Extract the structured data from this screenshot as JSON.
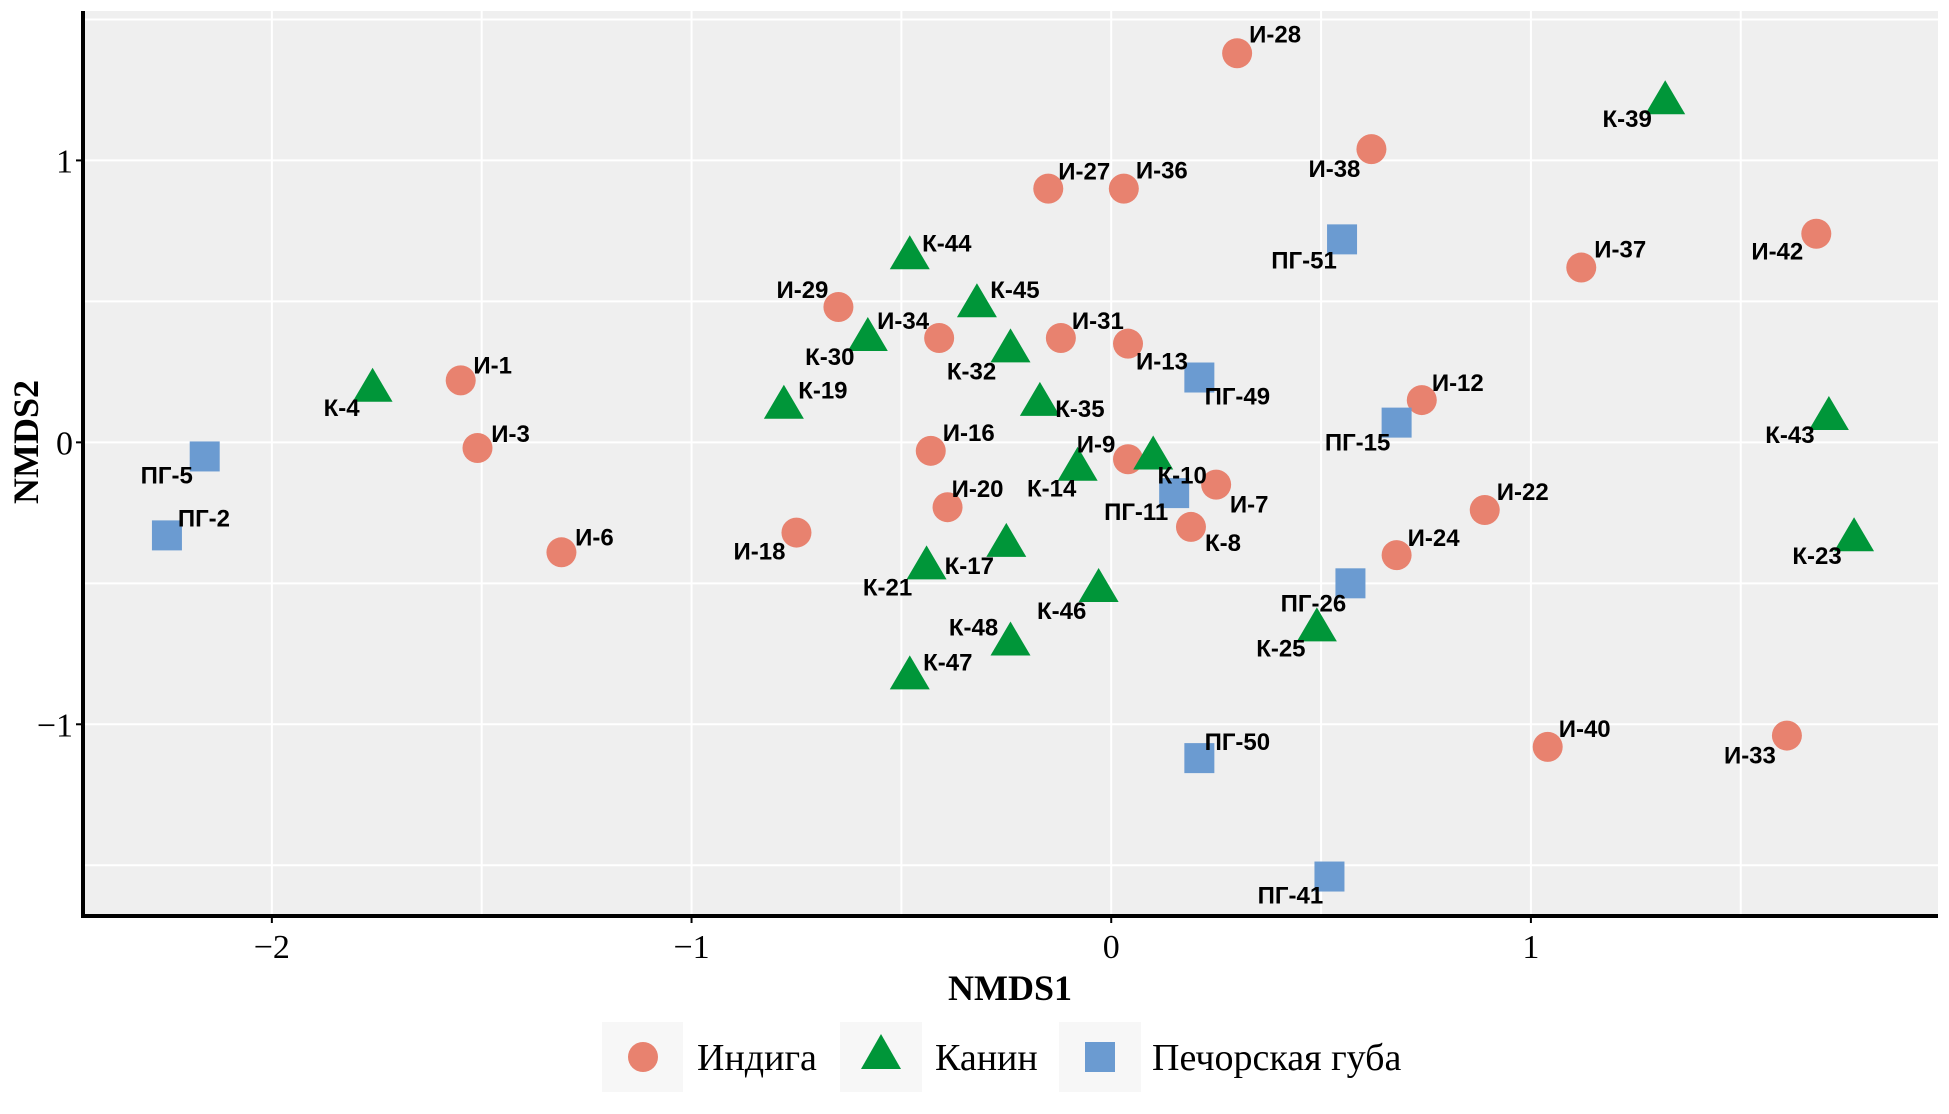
{
  "chart_data": {
    "type": "scatter",
    "title": "",
    "xlabel": "NMDS1",
    "ylabel": "NMDS2",
    "xlim": [
      -2.45,
      1.97
    ],
    "ylim": [
      -1.68,
      1.53
    ],
    "xticks": [
      -2,
      -1,
      0,
      1
    ],
    "xtick_labels": [
      "−2",
      "−1",
      "0",
      "1"
    ],
    "yticks": [
      -1,
      0,
      1
    ],
    "ytick_labels": [
      "−1",
      "0",
      "1"
    ],
    "grid": true,
    "legend_position": "bottom",
    "series": [
      {
        "name": "Индига",
        "marker": "circle",
        "color": "#e8826f",
        "points": [
          {
            "label": "И-1",
            "x": -1.55,
            "y": 0.22
          },
          {
            "label": "И-3",
            "x": -1.51,
            "y": -0.02
          },
          {
            "label": "И-6",
            "x": -1.31,
            "y": -0.39
          },
          {
            "label": "И-7",
            "x": 0.25,
            "y": -0.15
          },
          {
            "label": "К-8",
            "x": 0.19,
            "y": -0.3
          },
          {
            "label": "И-9",
            "x": 0.04,
            "y": -0.06
          },
          {
            "label": "И-12",
            "x": 0.74,
            "y": 0.15
          },
          {
            "label": "И-13",
            "x": 0.04,
            "y": 0.35
          },
          {
            "label": "И-16",
            "x": -0.43,
            "y": -0.03
          },
          {
            "label": "И-18",
            "x": -0.75,
            "y": -0.32
          },
          {
            "label": "И-20",
            "x": -0.39,
            "y": -0.23
          },
          {
            "label": "И-22",
            "x": 0.89,
            "y": -0.24
          },
          {
            "label": "И-24",
            "x": 0.68,
            "y": -0.4
          },
          {
            "label": "И-27",
            "x": -0.15,
            "y": 0.9
          },
          {
            "label": "И-28",
            "x": 0.3,
            "y": 1.38
          },
          {
            "label": "И-29",
            "x": -0.65,
            "y": 0.48
          },
          {
            "label": "И-31",
            "x": -0.12,
            "y": 0.37
          },
          {
            "label": "И-33",
            "x": 1.61,
            "y": -1.04
          },
          {
            "label": "И-34",
            "x": -0.41,
            "y": 0.37
          },
          {
            "label": "И-36",
            "x": 0.03,
            "y": 0.9
          },
          {
            "label": "И-37",
            "x": 1.12,
            "y": 0.62
          },
          {
            "label": "И-38",
            "x": 0.62,
            "y": 1.04
          },
          {
            "label": "И-40",
            "x": 1.04,
            "y": -1.08
          },
          {
            "label": "И-42",
            "x": 1.68,
            "y": 0.74
          }
        ]
      },
      {
        "name": "Канин",
        "marker": "triangle",
        "color": "#009639",
        "points": [
          {
            "label": "К-4",
            "x": -1.76,
            "y": 0.19
          },
          {
            "label": "К-10",
            "x": 0.1,
            "y": -0.05
          },
          {
            "label": "К-14",
            "x": -0.08,
            "y": -0.09
          },
          {
            "label": "К-17",
            "x": -0.25,
            "y": -0.36
          },
          {
            "label": "К-19",
            "x": -0.78,
            "y": 0.13
          },
          {
            "label": "К-21",
            "x": -0.44,
            "y": -0.44
          },
          {
            "label": "К-23",
            "x": 1.77,
            "y": -0.34
          },
          {
            "label": "К-25",
            "x": 0.49,
            "y": -0.66
          },
          {
            "label": "К-30",
            "x": -0.58,
            "y": 0.37
          },
          {
            "label": "К-32",
            "x": -0.24,
            "y": 0.33
          },
          {
            "label": "К-35",
            "x": -0.17,
            "y": 0.14
          },
          {
            "label": "К-39",
            "x": 1.32,
            "y": 1.21
          },
          {
            "label": "К-43",
            "x": 1.71,
            "y": 0.09
          },
          {
            "label": "К-44",
            "x": -0.48,
            "y": 0.66
          },
          {
            "label": "К-45",
            "x": -0.32,
            "y": 0.49
          },
          {
            "label": "К-46",
            "x": -0.03,
            "y": -0.52
          },
          {
            "label": "К-47",
            "x": -0.48,
            "y": -0.83
          },
          {
            "label": "К-48",
            "x": -0.24,
            "y": -0.71
          }
        ]
      },
      {
        "name": "Печорская губа",
        "marker": "square",
        "color": "#6b9bd1",
        "points": [
          {
            "label": "ПГ-2",
            "x": -2.25,
            "y": -0.33
          },
          {
            "label": "ПГ-5",
            "x": -2.16,
            "y": -0.05
          },
          {
            "label": "ПГ-11",
            "x": 0.15,
            "y": -0.18
          },
          {
            "label": "ПГ-15",
            "x": 0.68,
            "y": 0.07
          },
          {
            "label": "ПГ-26",
            "x": 0.57,
            "y": -0.5
          },
          {
            "label": "ПГ-41",
            "x": 0.52,
            "y": -1.54
          },
          {
            "label": "ПГ-49",
            "x": 0.21,
            "y": 0.23
          },
          {
            "label": "ПГ-50",
            "x": 0.21,
            "y": -1.12
          },
          {
            "label": "ПГ-51",
            "x": 0.55,
            "y": 0.72
          }
        ]
      }
    ]
  },
  "legend": {
    "items": [
      {
        "label": "Индига",
        "icon": "circle-icon"
      },
      {
        "label": "Канин",
        "icon": "triangle-icon"
      },
      {
        "label": "Печорская губа",
        "icon": "square-icon"
      }
    ]
  },
  "colors": {
    "panel_background": "#efefef",
    "grid": "#ffffff",
    "axis": "#000000"
  }
}
